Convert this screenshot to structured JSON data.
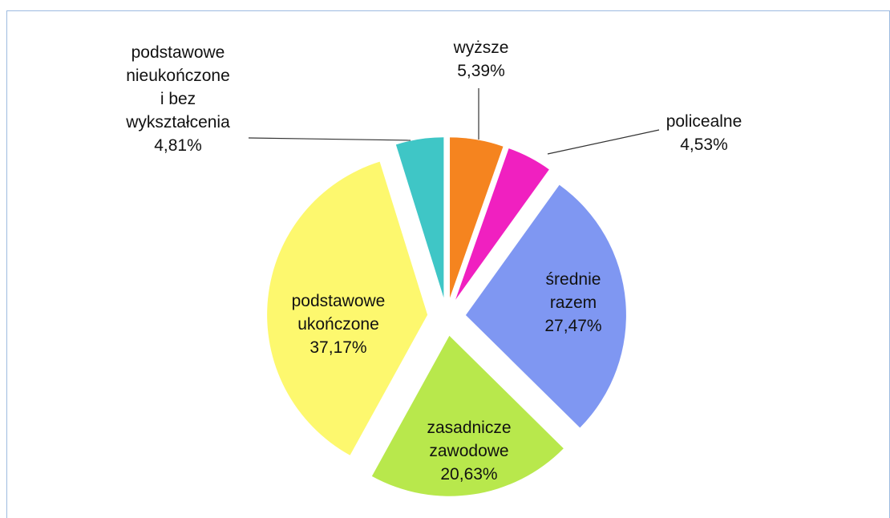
{
  "chart_data": {
    "type": "pie",
    "categories": [
      "wyższe",
      "policealne",
      "średnie\nrazem",
      "zasadnicze\nzawodowe",
      "podstawowe\nukończone",
      "podstawowe\nnieukończone\ni bez\nwykształcenia"
    ],
    "values": [
      5.39,
      4.53,
      27.47,
      20.63,
      37.17,
      4.81
    ],
    "value_labels": [
      "5,39%",
      "4,53%",
      "27,47%",
      "20,63%",
      "37,17%",
      "4,81%"
    ],
    "colors": [
      "#f5841f",
      "#f020c0",
      "#7f97f2",
      "#b8e84c",
      "#fdf86e",
      "#3fc6c6"
    ]
  }
}
